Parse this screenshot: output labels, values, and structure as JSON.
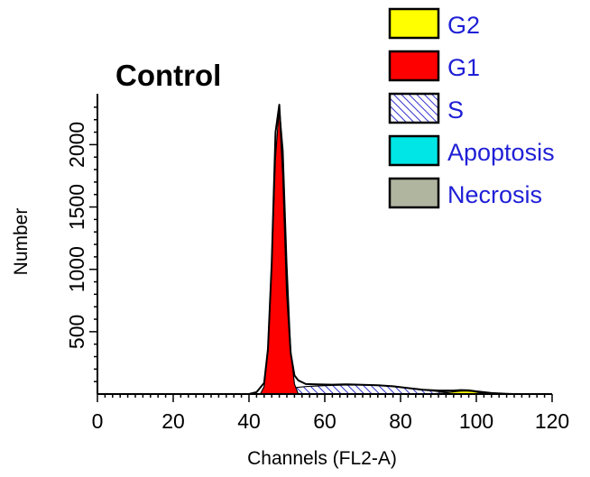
{
  "chart_data": {
    "type": "area",
    "title": "Control",
    "xlabel": "Channels (FL2-A)",
    "ylabel": "Number",
    "xlim": [
      0,
      120
    ],
    "ylim": [
      0,
      2350
    ],
    "x_ticks": [
      "0",
      "20",
      "40",
      "60",
      "80",
      "100",
      "120"
    ],
    "y_ticks": [
      "500",
      "1000",
      "1500",
      "2000"
    ],
    "legend_position": "top-right",
    "legend": [
      {
        "name": "G2",
        "fill": "#ffff00",
        "pattern": "solid"
      },
      {
        "name": "G1",
        "fill": "#ff0000",
        "pattern": "solid"
      },
      {
        "name": "S",
        "fill": "#3333cc",
        "pattern": "hatch"
      },
      {
        "name": "Apoptosis",
        "fill": "#00e5e5",
        "pattern": "solid"
      },
      {
        "name": "Necrosis",
        "fill": "#b0b5a0",
        "pattern": "solid"
      }
    ],
    "series": [
      {
        "name": "S",
        "x": [
          44,
          47,
          50,
          55,
          60,
          65,
          70,
          75,
          80,
          85,
          90,
          95,
          100,
          104
        ],
        "values": [
          0,
          20,
          45,
          60,
          68,
          72,
          72,
          68,
          55,
          35,
          20,
          10,
          4,
          0
        ]
      },
      {
        "name": "G1",
        "x": [
          43,
          44,
          45,
          46,
          47,
          48,
          49,
          50,
          51,
          52,
          53
        ],
        "values": [
          0,
          60,
          350,
          1050,
          1900,
          2300,
          1950,
          1050,
          350,
          80,
          0
        ]
      },
      {
        "name": "G2",
        "x": [
          88,
          92,
          95,
          97,
          99,
          101,
          104
        ],
        "values": [
          0,
          10,
          22,
          25,
          22,
          10,
          0
        ]
      },
      {
        "name": "histogram",
        "x": [
          0,
          40,
          42,
          44,
          45,
          46,
          47,
          48,
          49,
          50,
          51,
          52,
          53,
          54,
          55,
          58,
          62,
          66,
          70,
          74,
          78,
          82,
          86,
          90,
          94,
          96,
          98,
          100,
          104,
          108,
          110
        ],
        "values": [
          0,
          0,
          15,
          90,
          360,
          1050,
          2100,
          2320,
          1750,
          820,
          330,
          150,
          110,
          95,
          80,
          78,
          75,
          78,
          74,
          70,
          62,
          48,
          35,
          28,
          28,
          32,
          30,
          22,
          8,
          2,
          0
        ]
      }
    ]
  }
}
